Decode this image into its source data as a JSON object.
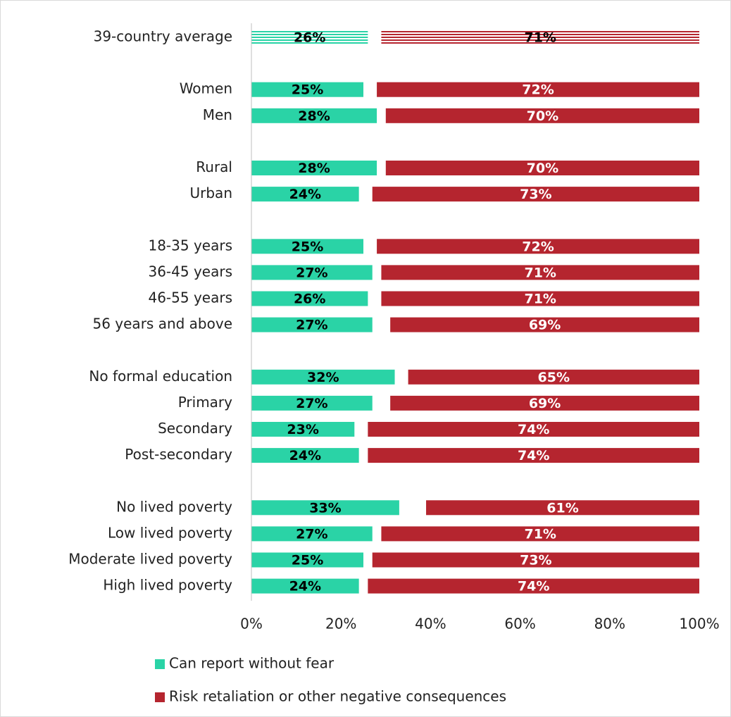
{
  "chart_data": {
    "type": "bar",
    "categories": [
      "39-country average",
      null,
      "Women",
      "Men",
      null,
      "Rural",
      "Urban",
      null,
      "18-35 years",
      "36-45 years",
      "46-55 years",
      "56 years and above",
      null,
      "No formal education",
      "Primary",
      "Secondary",
      "Post-secondary",
      null,
      "No lived poverty",
      "Low lived poverty",
      "Moderate lived poverty",
      "High lived poverty"
    ],
    "series": [
      {
        "name": "Can report without fear",
        "color": "#2ad3a6",
        "values": [
          26,
          null,
          25,
          28,
          null,
          28,
          24,
          null,
          25,
          27,
          26,
          27,
          null,
          32,
          27,
          23,
          24,
          null,
          33,
          27,
          25,
          24
        ],
        "value_labels": [
          "26%",
          null,
          "25%",
          "28%",
          null,
          "28%",
          "24%",
          null,
          "25%",
          "27%",
          "26%",
          "27%",
          null,
          "32%",
          "27%",
          "23%",
          "24%",
          null,
          "33%",
          "27%",
          "25%",
          "24%"
        ]
      },
      {
        "name": "Risk retaliation or other negative consequences",
        "color": "#b5252f",
        "values": [
          71,
          null,
          72,
          70,
          null,
          70,
          73,
          null,
          72,
          71,
          71,
          69,
          null,
          65,
          69,
          74,
          74,
          null,
          61,
          71,
          73,
          74
        ],
        "value_labels": [
          "71%",
          null,
          "72%",
          "70%",
          null,
          "70%",
          "73%",
          null,
          "72%",
          "71%",
          "71%",
          "69%",
          null,
          "65%",
          "69%",
          "74%",
          "74%",
          null,
          "61%",
          "71%",
          "73%",
          "74%"
        ]
      }
    ],
    "xlim": [
      0,
      100
    ],
    "xticks": [
      {
        "value": 0,
        "label": "0%"
      },
      {
        "value": 20,
        "label": "20%"
      },
      {
        "value": 40,
        "label": "40%"
      },
      {
        "value": 60,
        "label": "60%"
      },
      {
        "value": 80,
        "label": "80%"
      },
      {
        "value": 100,
        "label": "100%"
      }
    ],
    "hatched_rows": [
      0
    ],
    "legend": "bottom"
  }
}
